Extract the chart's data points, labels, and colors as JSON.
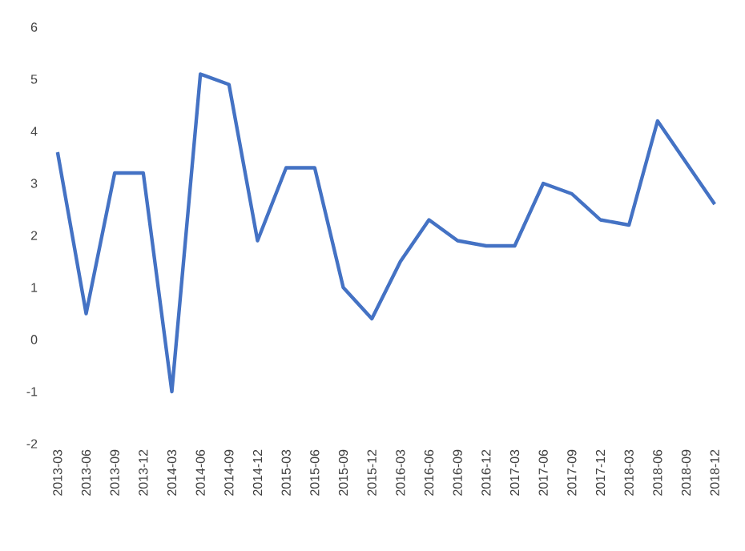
{
  "chart_data": {
    "type": "line",
    "categories": [
      "2013-03",
      "2013-06",
      "2013-09",
      "2013-12",
      "2014-03",
      "2014-06",
      "2014-09",
      "2014-12",
      "2015-03",
      "2015-06",
      "2015-09",
      "2015-12",
      "2016-03",
      "2016-06",
      "2016-09",
      "2016-12",
      "2017-03",
      "2017-06",
      "2017-09",
      "2017-12",
      "2018-03",
      "2018-06",
      "2018-09",
      "2018-12"
    ],
    "values": [
      3.6,
      0.5,
      3.2,
      3.2,
      -1.0,
      5.1,
      4.9,
      1.9,
      3.3,
      3.3,
      1.0,
      0.4,
      1.5,
      2.3,
      1.9,
      1.8,
      1.8,
      3.0,
      2.8,
      2.3,
      2.2,
      4.2,
      3.4,
      2.6
    ],
    "color": "#4472c4",
    "line_style": "solid",
    "marker": "none",
    "ylim": [
      -2,
      6
    ],
    "yticks": [
      -2,
      -1,
      0,
      1,
      2,
      3,
      4,
      5,
      6
    ]
  }
}
